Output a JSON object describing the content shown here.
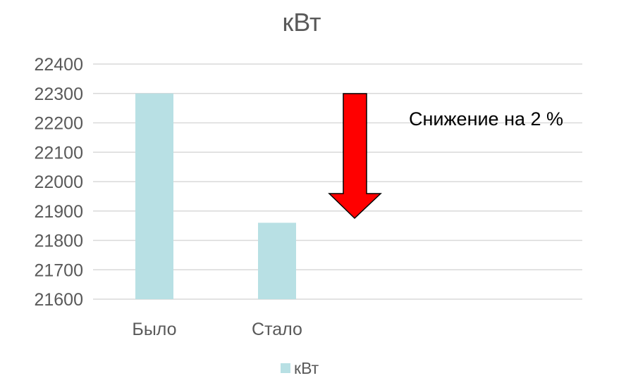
{
  "chart_data": {
    "type": "bar",
    "title": "кВт",
    "categories": [
      "Было",
      "Стало"
    ],
    "series": [
      {
        "name": "кВт",
        "values": [
          22300,
          21860
        ]
      }
    ],
    "ylim": [
      21600,
      22400
    ],
    "yticks": [
      21600,
      21700,
      21800,
      21900,
      22000,
      22100,
      22200,
      22300,
      22400
    ],
    "grid": true,
    "legend": "bottom",
    "annotation": "Снижение на 2 %"
  },
  "colors": {
    "bar": "#b8e0e4",
    "grid": "#d9d9d9",
    "arrow_fill": "#ff0000",
    "arrow_stroke": "#000000"
  },
  "icons": {
    "arrow": "down-arrow-icon"
  }
}
